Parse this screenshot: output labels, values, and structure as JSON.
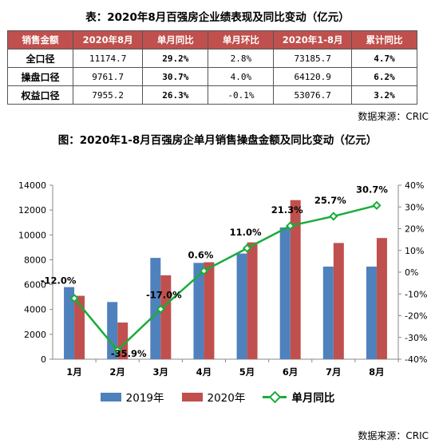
{
  "table": {
    "title": "表：2020年8月百强房企业绩表现及同比变动（亿元）",
    "headers": [
      "销售金额",
      "2020年8月",
      "单月同比",
      "单月环比",
      "2020年1-8月",
      "累计同比"
    ],
    "rows": [
      [
        "全口径",
        "11174.7",
        "29.2%",
        "2.8%",
        "73185.7",
        "4.7%"
      ],
      [
        "操盘口径",
        "9761.7",
        "30.7%",
        "4.0%",
        "64120.9",
        "6.2%"
      ],
      [
        "权益口径",
        "7955.2",
        "26.3%",
        "-0.1%",
        "53076.7",
        "3.2%"
      ]
    ],
    "source": "数据来源：CRIC"
  },
  "colors": {
    "header_bg": "#c0504d",
    "series_2019": "#4f81bd",
    "series_2020": "#c0504d",
    "line_yoy": "#1aac3a"
  },
  "chart_data": {
    "type": "bar",
    "title": "图：2020年1-8月百强房企单月销售操盘金额及同比变动（亿元）",
    "categories": [
      "1月",
      "2月",
      "3月",
      "4月",
      "5月",
      "6月",
      "7月",
      "8月"
    ],
    "series": [
      {
        "name": "2019年",
        "axis": "left",
        "values": [
          5800,
          4600,
          8150,
          7750,
          8500,
          10600,
          7450,
          7450
        ]
      },
      {
        "name": "2020年",
        "axis": "left",
        "values": [
          5100,
          2950,
          6750,
          7800,
          9400,
          12800,
          9350,
          9750
        ]
      },
      {
        "name": "单月同比",
        "type": "line",
        "axis": "right",
        "values": [
          -12.0,
          -35.9,
          -17.0,
          0.6,
          11.0,
          21.3,
          25.7,
          30.7
        ],
        "labels": [
          "-12.0%",
          "-35.9%",
          "-17.0%",
          "0.6%",
          "11.0%",
          "21.3%",
          "25.7%",
          "30.7%"
        ]
      }
    ],
    "ylim_left": [
      0,
      14000
    ],
    "yticks_left": [
      "0",
      "2000",
      "4000",
      "6000",
      "8000",
      "10000",
      "12000",
      "14000"
    ],
    "ylim_right": [
      -40,
      40
    ],
    "yticks_right": [
      "-40%",
      "-30%",
      "-20%",
      "-10%",
      "0%",
      "10%",
      "20%",
      "30%",
      "40%"
    ],
    "legend_position": "bottom",
    "grid": false,
    "source": "数据来源：CRIC"
  }
}
